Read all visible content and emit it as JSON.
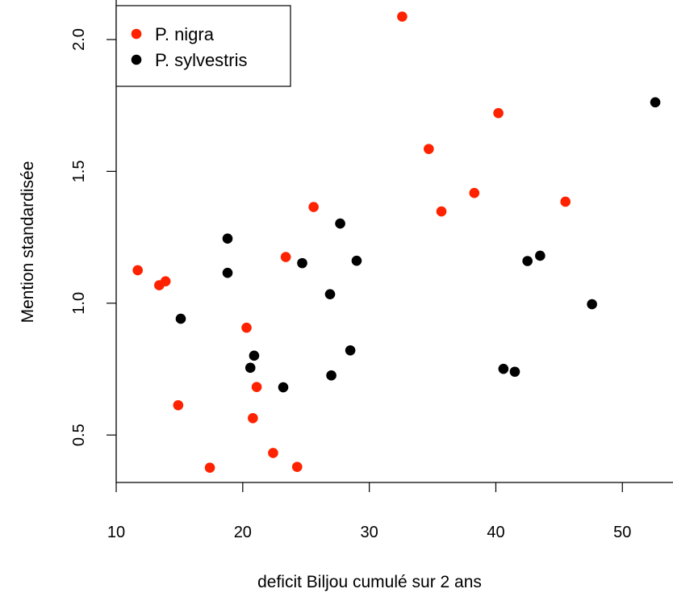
{
  "chart_data": {
    "type": "scatter",
    "xlabel": "deficit Biljou cumulé sur 2 ans",
    "ylabel": "Mention standardisée",
    "xlim": [
      10,
      54
    ],
    "ylim": [
      0.32,
      2.15
    ],
    "x_ticks": [
      10,
      20,
      30,
      40,
      50
    ],
    "y_ticks": [
      0.5,
      1.0,
      1.5,
      2.0
    ],
    "x_tick_labels": [
      "10",
      "20",
      "30",
      "40",
      "50"
    ],
    "y_tick_labels": [
      "0.5",
      "1.0",
      "1.5",
      "2.0"
    ],
    "grid": false,
    "legend_position": "top-left",
    "series": [
      {
        "name": "P. nigra",
        "color": "#ff2200",
        "points": [
          [
            11.7,
            1.125
          ],
          [
            13.4,
            1.068
          ],
          [
            13.9,
            1.083
          ],
          [
            14.9,
            0.613
          ],
          [
            17.4,
            0.376
          ],
          [
            20.3,
            0.907
          ],
          [
            20.8,
            0.564
          ],
          [
            21.1,
            0.682
          ],
          [
            22.4,
            0.432
          ],
          [
            23.4,
            1.175
          ],
          [
            24.3,
            0.379
          ],
          [
            25.6,
            1.365
          ],
          [
            32.6,
            2.087
          ],
          [
            34.7,
            1.585
          ],
          [
            35.7,
            1.348
          ],
          [
            38.3,
            1.418
          ],
          [
            40.2,
            1.721
          ],
          [
            45.5,
            1.385
          ]
        ]
      },
      {
        "name": "P. sylvestris",
        "color": "#000000",
        "points": [
          [
            15.1,
            0.941
          ],
          [
            18.8,
            1.245
          ],
          [
            18.8,
            1.115
          ],
          [
            20.6,
            0.755
          ],
          [
            20.9,
            0.801
          ],
          [
            23.2,
            0.681
          ],
          [
            24.7,
            1.152
          ],
          [
            26.9,
            1.034
          ],
          [
            27.0,
            0.726
          ],
          [
            27.7,
            1.302
          ],
          [
            28.5,
            0.821
          ],
          [
            29.0,
            1.161
          ],
          [
            40.6,
            0.751
          ],
          [
            41.5,
            0.74
          ],
          [
            42.5,
            1.16
          ],
          [
            43.5,
            1.18
          ],
          [
            47.6,
            0.996
          ],
          [
            52.6,
            1.762
          ]
        ]
      }
    ]
  }
}
